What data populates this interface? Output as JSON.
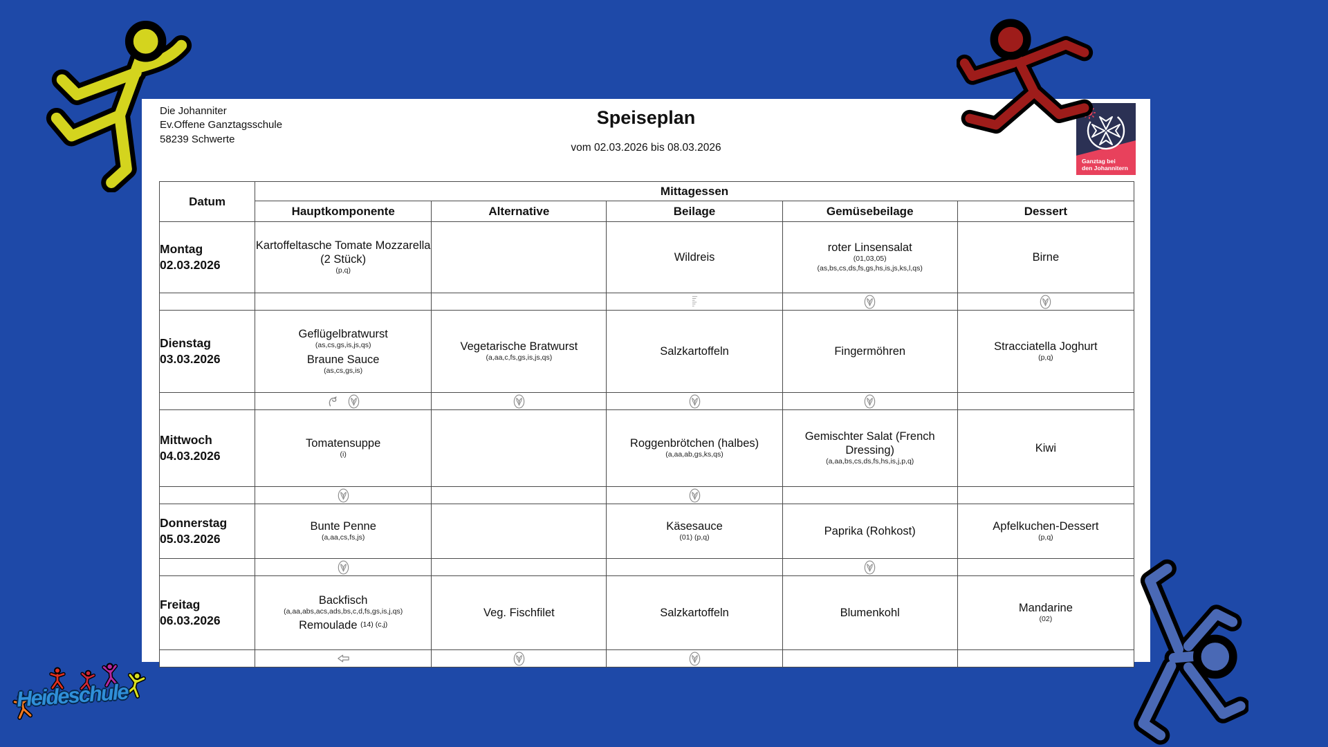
{
  "page": {
    "org_lines": [
      "Die Johanniter",
      "Ev.Offene Ganztagsschule",
      "58239 Schwerte"
    ],
    "title": "Speiseplan",
    "subtitle": "vom 02.03.2026 bis 08.03.2026",
    "logo": {
      "line1": "Ganztag bei",
      "line2": "den Johannitern"
    }
  },
  "footer_logo": {
    "text": "Heideschule"
  },
  "colors": {
    "background": "#1e49a8",
    "figure_yellow": "#d4d41e",
    "figure_red": "#9e1c1a",
    "figure_blue": "#4a69b5",
    "johanniter_navy": "#2b3154",
    "johanniter_red": "#e8415c"
  },
  "table": {
    "date_header": "Datum",
    "group_header": "Mittagessen",
    "columns": [
      "Hauptkomponente",
      "Alternative",
      "Beilage",
      "Gemüsebeilage",
      "Dessert"
    ],
    "days": [
      {
        "day": "Montag",
        "date": "02.03.2026",
        "cells": [
          {
            "items": [
              {
                "name": "Kartoffeltasche Tomate Mozzarella (2 Stück)",
                "allergens": [
                  "(p,q)"
                ]
              }
            ]
          },
          {
            "items": []
          },
          {
            "items": [
              {
                "name": "Wildreis",
                "allergens": []
              }
            ]
          },
          {
            "items": [
              {
                "name": "roter Linsensalat",
                "allergens": [
                  "(01,03,05)",
                  "(as,bs,cs,ds,fs,gs,hs,is,js,ks,l,qs)"
                ]
              }
            ]
          },
          {
            "items": [
              {
                "name": "Birne",
                "allergens": []
              }
            ]
          }
        ],
        "icons": [
          [],
          [],
          [
            "fine-print"
          ],
          [
            "veg"
          ],
          [
            "veg"
          ]
        ]
      },
      {
        "day": "Dienstag",
        "date": "03.03.2026",
        "cells": [
          {
            "items": [
              {
                "name": "Geflügelbratwurst",
                "allergens": [
                  "(as,cs,gs,is,js,qs)"
                ]
              },
              {
                "name": "Braune Sauce",
                "allergens": [
                  "(as,cs,gs,is)"
                ]
              }
            ]
          },
          {
            "items": [
              {
                "name": "Vegetarische Bratwurst",
                "allergens": [
                  "(a,aa,c,fs,gs,is,js,qs)"
                ]
              }
            ]
          },
          {
            "items": [
              {
                "name": "Salzkartoffeln",
                "allergens": []
              }
            ]
          },
          {
            "items": [
              {
                "name": "Fingermöhren",
                "allergens": []
              }
            ]
          },
          {
            "items": [
              {
                "name": "Stracciatella Joghurt",
                "allergens": [
                  "(p,q)"
                ]
              }
            ]
          }
        ],
        "icons": [
          [
            "poultry",
            "veg"
          ],
          [
            "veg"
          ],
          [
            "veg"
          ],
          [
            "veg"
          ],
          []
        ]
      },
      {
        "day": "Mittwoch",
        "date": "04.03.2026",
        "cells": [
          {
            "items": [
              {
                "name": "Tomatensuppe",
                "allergens": [
                  "(i)"
                ]
              }
            ]
          },
          {
            "items": []
          },
          {
            "items": [
              {
                "name": "Roggenbrötchen (halbes)",
                "allergens": [
                  "(a,aa,ab,gs,ks,qs)"
                ]
              }
            ]
          },
          {
            "items": [
              {
                "name": "Gemischter Salat (French Dressing)",
                "allergens": [
                  "(a,aa,bs,cs,ds,fs,hs,is,j,p,q)"
                ]
              }
            ]
          },
          {
            "items": [
              {
                "name": "Kiwi",
                "allergens": []
              }
            ]
          }
        ],
        "icons": [
          [
            "veg"
          ],
          [],
          [
            "veg"
          ],
          [],
          []
        ]
      },
      {
        "day": "Donnerstag",
        "date": "05.03.2026",
        "cells": [
          {
            "items": [
              {
                "name": "Bunte Penne",
                "allergens": [
                  "(a,aa,cs,fs,js)"
                ]
              }
            ]
          },
          {
            "items": []
          },
          {
            "items": [
              {
                "name": "Käsesauce",
                "allergens": [
                  "(01) (p,q)"
                ]
              }
            ]
          },
          {
            "items": [
              {
                "name": "Paprika (Rohkost)",
                "allergens": []
              }
            ]
          },
          {
            "items": [
              {
                "name": "Apfelkuchen-Dessert",
                "allergens": [
                  "(p,q)"
                ]
              }
            ]
          }
        ],
        "icons": [
          [
            "veg"
          ],
          [],
          [],
          [
            "veg"
          ],
          []
        ]
      },
      {
        "day": "Freitag",
        "date": "06.03.2026",
        "cells": [
          {
            "items": [
              {
                "name": "Backfisch",
                "allergens": [
                  "(a,aa,abs,acs,ads,bs,c,d,fs,gs,is,j,qs)"
                ]
              },
              {
                "name": "Remoulade",
                "suffix": "(14) (c,j)",
                "allergens": []
              }
            ]
          },
          {
            "items": [
              {
                "name": "Veg. Fischfilet",
                "allergens": []
              }
            ]
          },
          {
            "items": [
              {
                "name": "Salzkartoffeln",
                "allergens": []
              }
            ]
          },
          {
            "items": [
              {
                "name": "Blumenkohl",
                "allergens": []
              }
            ]
          },
          {
            "items": [
              {
                "name": "Mandarine",
                "allergens": [
                  "(02)"
                ]
              }
            ]
          }
        ],
        "icons": [
          [
            "fish-arrow"
          ],
          [
            "veg"
          ],
          [
            "veg"
          ],
          [],
          []
        ]
      }
    ]
  }
}
